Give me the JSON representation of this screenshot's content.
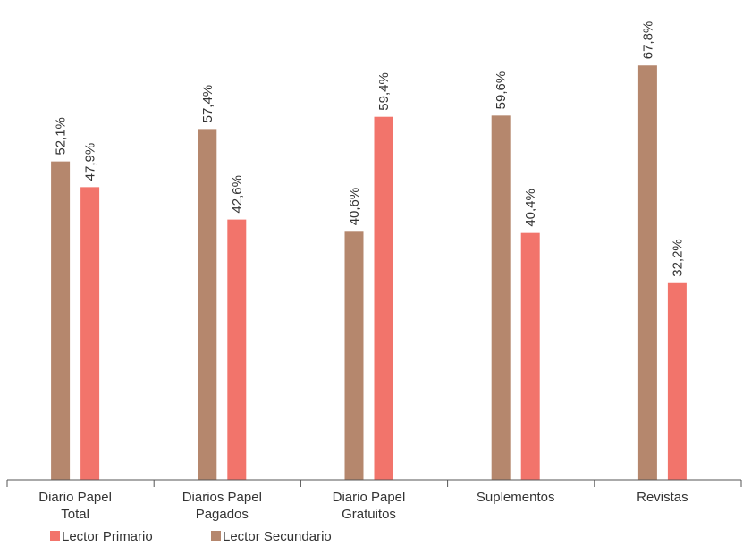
{
  "chart_data": {
    "type": "bar",
    "categories": [
      [
        "Diario Papel",
        "Total"
      ],
      [
        "Diarios Papel",
        "Pagados"
      ],
      [
        "Diario Papel",
        "Gratuitos"
      ],
      [
        "Suplementos"
      ],
      [
        "Revistas"
      ]
    ],
    "series": [
      {
        "name": "Lector Secundario",
        "color": "#b5876d",
        "values": [
          52.1,
          57.4,
          40.6,
          59.6,
          67.8
        ],
        "labels": [
          "52,1%",
          "57,4%",
          "40,6%",
          "59,6%",
          "67,8%"
        ]
      },
      {
        "name": "Lector Primario",
        "color": "#f2746b",
        "values": [
          47.9,
          42.6,
          59.4,
          40.4,
          32.2
        ],
        "labels": [
          "47,9%",
          "42,6%",
          "59,4%",
          "40,4%",
          "32,2%"
        ]
      }
    ],
    "legend": {
      "position": "bottom-left",
      "order": [
        "Lector Primario",
        "Lector Secundario"
      ]
    },
    "ylim": [
      0,
      100
    ],
    "grid": false,
    "title": "",
    "xlabel": "",
    "ylabel": ""
  }
}
